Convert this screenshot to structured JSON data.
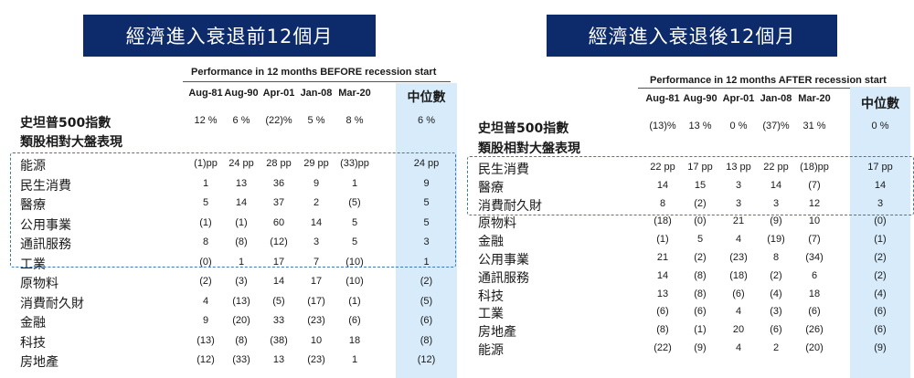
{
  "left": {
    "banner": "經濟進入衰退前12個月",
    "perf_title": "Performance in 12 months BEFORE recession start",
    "columns": [
      "Aug-81",
      "Aug-90",
      "Apr-01",
      "Jan-08",
      "Mar-20"
    ],
    "median_label": "中位數",
    "sp500": {
      "label": "史坦普500指數",
      "values": [
        "12 %",
        "6 %",
        "(22)%",
        "5 %",
        "8 %"
      ],
      "median": "6 %"
    },
    "subtitle": "類股相對大盤表現",
    "rows": [
      {
        "label": "能源",
        "values": [
          "(1)pp",
          "24 pp",
          "28 pp",
          "29 pp",
          "(33)pp"
        ],
        "median": "24 pp"
      },
      {
        "label": "民生消費",
        "values": [
          "1",
          "13",
          "36",
          "9",
          "1"
        ],
        "median": "9"
      },
      {
        "label": "醫療",
        "values": [
          "5",
          "14",
          "37",
          "2",
          "(5)"
        ],
        "median": "5"
      },
      {
        "label": "公用事業",
        "values": [
          "(1)",
          "(1)",
          "60",
          "14",
          "5"
        ],
        "median": "5"
      },
      {
        "label": "通訊服務",
        "values": [
          "8",
          "(8)",
          "(12)",
          "3",
          "5"
        ],
        "median": "3"
      },
      {
        "label": "工業",
        "values": [
          "(0)",
          "1",
          "17",
          "7",
          "(10)"
        ],
        "median": "1"
      },
      {
        "label": "原物料",
        "values": [
          "(2)",
          "(3)",
          "14",
          "17",
          "(10)"
        ],
        "median": "(2)"
      },
      {
        "label": "消費耐久財",
        "values": [
          "4",
          "(13)",
          "(5)",
          "(17)",
          "(1)"
        ],
        "median": "(5)"
      },
      {
        "label": "金融",
        "values": [
          "9",
          "(20)",
          "33",
          "(23)",
          "(6)"
        ],
        "median": "(6)"
      },
      {
        "label": "科技",
        "values": [
          "(13)",
          "(8)",
          "(38)",
          "10",
          "18"
        ],
        "median": "(8)"
      },
      {
        "label": "房地產",
        "values": [
          "(12)",
          "(33)",
          "13",
          "(23)",
          "1"
        ],
        "median": "(12)"
      }
    ]
  },
  "right": {
    "banner": "經濟進入衰退後12個月",
    "perf_title": "Performance in 12 months AFTER recession start",
    "columns": [
      "Aug-81",
      "Aug-90",
      "Apr-01",
      "Jan-08",
      "Mar-20"
    ],
    "median_label": "中位數",
    "sp500": {
      "label": "史坦普500指數",
      "values": [
        "(13)%",
        "13 %",
        "0 %",
        "(37)%",
        "31 %"
      ],
      "median": "0 %"
    },
    "subtitle": "類股相對大盤表現",
    "rows": [
      {
        "label": "民生消費",
        "values": [
          "22 pp",
          "17 pp",
          "13 pp",
          "22 pp",
          "(18)pp"
        ],
        "median": "17 pp"
      },
      {
        "label": "醫療",
        "values": [
          "14",
          "15",
          "3",
          "14",
          "(7)"
        ],
        "median": "14"
      },
      {
        "label": "消費耐久財",
        "values": [
          "8",
          "(2)",
          "3",
          "3",
          "12"
        ],
        "median": "3"
      },
      {
        "label": "原物料",
        "values": [
          "(18)",
          "(0)",
          "21",
          "(9)",
          "10"
        ],
        "median": "(0)"
      },
      {
        "label": "金融",
        "values": [
          "(1)",
          "5",
          "4",
          "(19)",
          "(7)"
        ],
        "median": "(1)"
      },
      {
        "label": "公用事業",
        "values": [
          "21",
          "(2)",
          "(23)",
          "8",
          "(34)"
        ],
        "median": "(2)"
      },
      {
        "label": "通訊服務",
        "values": [
          "14",
          "(8)",
          "(18)",
          "(2)",
          "6"
        ],
        "median": "(2)"
      },
      {
        "label": "科技",
        "values": [
          "13",
          "(8)",
          "(6)",
          "(4)",
          "18"
        ],
        "median": "(4)"
      },
      {
        "label": "工業",
        "values": [
          "(6)",
          "(6)",
          "4",
          "(3)",
          "(6)"
        ],
        "median": "(6)"
      },
      {
        "label": "房地產",
        "values": [
          "(8)",
          "(1)",
          "20",
          "(6)",
          "(26)"
        ],
        "median": "(6)"
      },
      {
        "label": "能源",
        "values": [
          "(22)",
          "(9)",
          "4",
          "2",
          "(20)"
        ],
        "median": "(9)"
      }
    ]
  }
}
